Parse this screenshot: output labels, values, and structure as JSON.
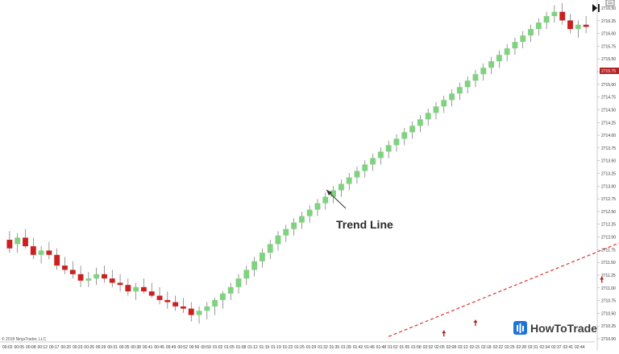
{
  "colors": {
    "up": "#7fd27f",
    "down": "#cc2020",
    "wick": "#555555",
    "trend_line": "#e03030",
    "arrow_marker": "#b22222",
    "axis": "#999999",
    "price_tag": "#b22222",
    "logo_icon": "#1e73d8"
  },
  "icons": {
    "logo": "bars-chart-icon",
    "toolbar": [
      "play-to-end-icon",
      "settings-icon"
    ],
    "annotation_pointer": "arrow-pointer-icon",
    "markers": "up-arrow-icon"
  },
  "copyright": "© 2018 NinjaTrader, LLC",
  "brand": {
    "name": "HowToTrade"
  },
  "chart_data": {
    "type": "candlestick",
    "title": "",
    "xlabel": "",
    "ylabel": "",
    "ylim": [
      2701.2,
      2716.8
    ],
    "x_ticks": [
      "00:02",
      "00:05",
      "00:08",
      "00:12",
      "00:17",
      "00:20",
      "00:23",
      "00:26",
      "00:29",
      "00:31",
      "00:35",
      "00:38",
      "00:41",
      "00:45",
      "00:49",
      "00:52",
      "00:56",
      "00:59",
      "01:02",
      "01:05",
      "01:08",
      "01:12",
      "01:15",
      "01:19",
      "01:22",
      "01:25",
      "01:29",
      "01:32",
      "01:35",
      "01:39",
      "01:42",
      "01:45",
      "01:48",
      "01:52",
      "01:55",
      "01:58",
      "02:02",
      "02:05",
      "02:08",
      "02:12",
      "02:15",
      "02:18",
      "02:22",
      "02:25",
      "02:28",
      "02:31",
      "02:34",
      "02:37",
      "02:41",
      "02:44"
    ],
    "y_ticks": [
      "2716.50",
      "2716.25",
      "2716.00",
      "2715.75",
      "2715.50",
      "2715.25",
      "2715.00",
      "2714.75",
      "2714.50",
      "2714.25",
      "2714.00",
      "2713.75",
      "2713.50",
      "2713.25",
      "2713.00",
      "2712.75",
      "2712.50",
      "2712.25",
      "2712.00",
      "2711.75",
      "2711.50",
      "2711.25",
      "2711.00",
      "2710.75",
      "2710.50",
      "2710.25",
      "2710.00"
    ],
    "current_price": "2715.75",
    "ohlc": [
      [
        2705.8,
        2706.2,
        2705.2,
        2705.4
      ],
      [
        2705.6,
        2706.1,
        2705.2,
        2705.9
      ],
      [
        2705.9,
        2706.3,
        2705.4,
        2705.5
      ],
      [
        2705.5,
        2705.9,
        2704.9,
        2705.1
      ],
      [
        2705.1,
        2705.5,
        2704.7,
        2705.3
      ],
      [
        2705.3,
        2705.7,
        2704.9,
        2705.1
      ],
      [
        2705.1,
        2705.4,
        2704.4,
        2704.6
      ],
      [
        2704.6,
        2705.0,
        2704.2,
        2704.4
      ],
      [
        2704.4,
        2704.8,
        2704.0,
        2704.2
      ],
      [
        2704.2,
        2704.6,
        2703.6,
        2703.9
      ],
      [
        2703.9,
        2704.3,
        2703.6,
        2704.0
      ],
      [
        2704.0,
        2704.5,
        2703.7,
        2704.2
      ],
      [
        2704.2,
        2704.6,
        2703.8,
        2704.0
      ],
      [
        2704.0,
        2704.4,
        2703.6,
        2703.8
      ],
      [
        2703.8,
        2704.2,
        2703.4,
        2703.7
      ],
      [
        2703.7,
        2704.0,
        2703.2,
        2703.4
      ],
      [
        2703.4,
        2703.8,
        2703.0,
        2703.6
      ],
      [
        2703.6,
        2704.0,
        2703.3,
        2703.4
      ],
      [
        2703.4,
        2703.8,
        2703.1,
        2703.2
      ],
      [
        2703.2,
        2703.6,
        2702.8,
        2703.0
      ],
      [
        2703.0,
        2703.4,
        2702.6,
        2702.9
      ],
      [
        2702.9,
        2703.2,
        2702.5,
        2702.7
      ],
      [
        2702.7,
        2703.1,
        2702.4,
        2702.6
      ],
      [
        2702.6,
        2702.9,
        2702.0,
        2702.3
      ],
      [
        2702.3,
        2702.7,
        2701.9,
        2702.5
      ],
      [
        2702.5,
        2702.9,
        2702.1,
        2702.7
      ],
      [
        2702.7,
        2703.1,
        2702.3,
        2703.0
      ],
      [
        2703.0,
        2703.4,
        2702.6,
        2703.3
      ],
      [
        2703.3,
        2703.8,
        2703.0,
        2703.6
      ],
      [
        2703.6,
        2704.2,
        2703.3,
        2704.0
      ],
      [
        2704.0,
        2704.6,
        2703.7,
        2704.4
      ],
      [
        2704.4,
        2705.0,
        2704.1,
        2704.8
      ],
      [
        2704.8,
        2705.4,
        2704.5,
        2705.2
      ],
      [
        2705.2,
        2705.8,
        2704.9,
        2705.6
      ],
      [
        2705.6,
        2706.2,
        2705.3,
        2706.0
      ],
      [
        2706.0,
        2706.5,
        2705.7,
        2706.3
      ],
      [
        2706.3,
        2706.8,
        2706.0,
        2706.6
      ],
      [
        2706.6,
        2707.1,
        2706.3,
        2706.9
      ],
      [
        2706.9,
        2707.4,
        2706.6,
        2707.2
      ],
      [
        2707.2,
        2707.7,
        2706.9,
        2707.5
      ],
      [
        2707.5,
        2708.0,
        2707.2,
        2707.8
      ],
      [
        2707.8,
        2708.3,
        2707.5,
        2708.1
      ],
      [
        2708.1,
        2708.6,
        2707.8,
        2708.4
      ],
      [
        2708.4,
        2708.9,
        2708.1,
        2708.7
      ],
      [
        2708.7,
        2709.2,
        2708.4,
        2709.0
      ],
      [
        2709.0,
        2709.5,
        2708.7,
        2709.3
      ],
      [
        2709.3,
        2709.8,
        2709.0,
        2709.6
      ],
      [
        2709.6,
        2710.1,
        2709.3,
        2709.9
      ],
      [
        2709.9,
        2710.4,
        2709.6,
        2710.2
      ],
      [
        2710.2,
        2710.7,
        2709.9,
        2710.5
      ],
      [
        2710.5,
        2711.0,
        2710.2,
        2710.8
      ],
      [
        2710.8,
        2711.3,
        2710.5,
        2711.1
      ],
      [
        2711.1,
        2711.6,
        2710.8,
        2711.4
      ],
      [
        2711.4,
        2711.9,
        2711.1,
        2711.7
      ],
      [
        2711.7,
        2712.2,
        2711.4,
        2712.0
      ],
      [
        2712.0,
        2712.5,
        2711.7,
        2712.3
      ],
      [
        2712.3,
        2712.8,
        2712.0,
        2712.6
      ],
      [
        2712.6,
        2713.1,
        2712.3,
        2712.9
      ],
      [
        2712.9,
        2713.4,
        2712.6,
        2713.2
      ],
      [
        2713.2,
        2713.7,
        2712.9,
        2713.5
      ],
      [
        2713.5,
        2714.0,
        2713.2,
        2713.8
      ],
      [
        2713.8,
        2714.3,
        2713.5,
        2714.1
      ],
      [
        2714.1,
        2714.6,
        2713.8,
        2714.4
      ],
      [
        2714.4,
        2714.9,
        2714.1,
        2714.7
      ],
      [
        2714.7,
        2715.2,
        2714.4,
        2715.0
      ],
      [
        2715.0,
        2715.5,
        2714.7,
        2715.3
      ],
      [
        2715.3,
        2715.8,
        2715.0,
        2715.6
      ],
      [
        2715.6,
        2716.1,
        2715.3,
        2715.9
      ],
      [
        2715.9,
        2716.4,
        2715.6,
        2716.2
      ],
      [
        2716.2,
        2716.7,
        2715.9,
        2716.4
      ],
      [
        2716.4,
        2716.8,
        2715.8,
        2716.0
      ],
      [
        2716.0,
        2716.3,
        2715.4,
        2715.6
      ],
      [
        2715.6,
        2716.0,
        2715.2,
        2715.8
      ],
      [
        2715.8,
        2716.2,
        2715.4,
        2715.7
      ]
    ],
    "trend_line": {
      "label": "Trend Line",
      "from": [
        48,
        2701.3
      ],
      "to": [
        148,
        2716.2
      ]
    },
    "markers": [
      {
        "index": 55,
        "price": 2701.6
      },
      {
        "index": 59,
        "price": 2702.1
      },
      {
        "index": 75,
        "price": 2704.1
      },
      {
        "index": 119,
        "price": 2710.5
      },
      {
        "index": 130,
        "price": 2713.2
      }
    ]
  }
}
